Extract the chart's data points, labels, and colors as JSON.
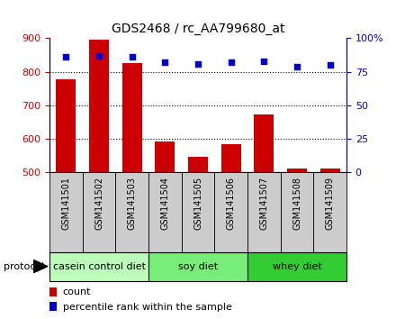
{
  "title": "GDS2468 / rc_AA799680_at",
  "samples": [
    "GSM141501",
    "GSM141502",
    "GSM141503",
    "GSM141504",
    "GSM141505",
    "GSM141506",
    "GSM141507",
    "GSM141508",
    "GSM141509"
  ],
  "counts": [
    778,
    895,
    825,
    593,
    545,
    583,
    672,
    510,
    510
  ],
  "percentile_ranks": [
    86,
    87,
    86,
    82,
    81,
    82,
    83,
    79,
    80
  ],
  "ylim_left": [
    500,
    900
  ],
  "ylim_right": [
    0,
    100
  ],
  "yticks_left": [
    500,
    600,
    700,
    800,
    900
  ],
  "yticks_right": [
    0,
    25,
    50,
    75,
    100
  ],
  "groups": [
    {
      "label": "casein control diet",
      "start": 0,
      "end": 3,
      "color": "#bbffbb"
    },
    {
      "label": "soy diet",
      "start": 3,
      "end": 6,
      "color": "#77ee77"
    },
    {
      "label": "whey diet",
      "start": 6,
      "end": 9,
      "color": "#33cc33"
    }
  ],
  "bar_color": "#cc0000",
  "dot_color": "#0000cc",
  "bar_width": 0.6,
  "grid_color": "black",
  "background_color": "white",
  "tick_bg_color": "#cccccc",
  "protocol_label": "protocol",
  "legend_count_label": "count",
  "legend_percentile_label": "percentile rank within the sample",
  "left_tick_color": "#cc0000",
  "right_tick_color": "#0000cc",
  "right_tick_label_100": "100%"
}
